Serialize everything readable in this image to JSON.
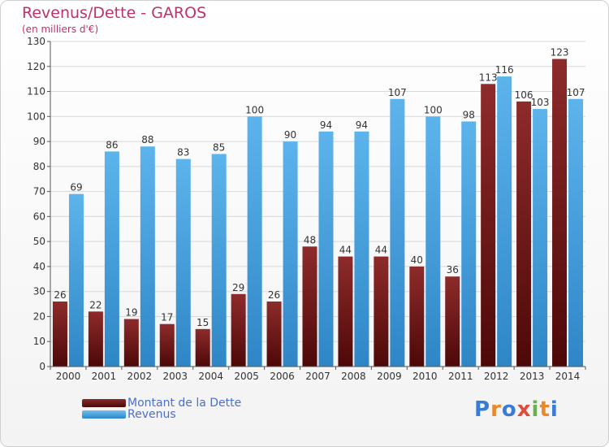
{
  "title": "Revenus/Dette - GAROS",
  "subtitle": "(en milliers d'€)",
  "colors": {
    "dette": "#7a1e1e",
    "revenus": "#4aa3e3",
    "title": "#c0306a",
    "legend_text": "#4a6fd0"
  },
  "legend": [
    {
      "label": "Montant de la Dette"
    },
    {
      "label": "Revenus"
    }
  ],
  "logo": {
    "letters": [
      "P",
      "r",
      "o",
      "x",
      "i",
      "t",
      "i"
    ]
  },
  "chart_data": {
    "type": "bar",
    "categories": [
      "2000",
      "2001",
      "2002",
      "2003",
      "2004",
      "2005",
      "2006",
      "2007",
      "2008",
      "2009",
      "2010",
      "2011",
      "2012",
      "2013",
      "2014"
    ],
    "series": [
      {
        "name": "Montant de la Dette",
        "values": [
          26,
          22,
          19,
          17,
          15,
          29,
          26,
          48,
          44,
          44,
          40,
          36,
          113,
          106,
          123
        ]
      },
      {
        "name": "Revenus",
        "values": [
          69,
          86,
          88,
          83,
          85,
          100,
          90,
          94,
          94,
          107,
          100,
          98,
          116,
          103,
          107
        ]
      }
    ],
    "ylim": [
      0,
      130
    ],
    "yticks": [
      0,
      10,
      20,
      30,
      40,
      50,
      60,
      70,
      80,
      90,
      100,
      110,
      120,
      130
    ],
    "grid": true,
    "legend_position": "bottom-left"
  }
}
